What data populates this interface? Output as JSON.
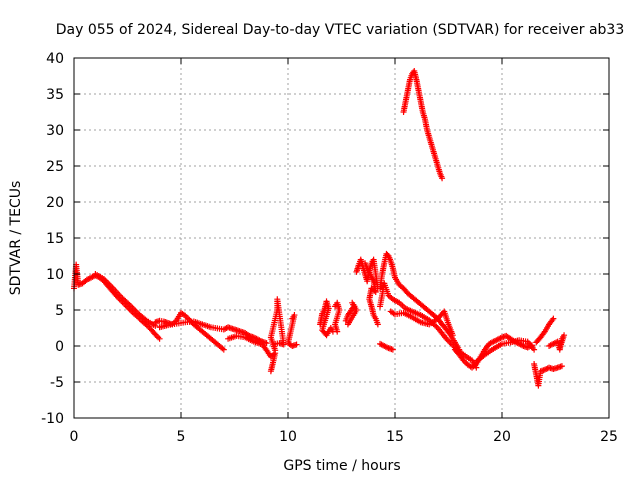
{
  "chart_data": {
    "type": "scatter",
    "title": "Day 055 of 2024, Sidereal Day-to-day VTEC variation (SDTVAR) for receiver ab33",
    "xlabel": "GPS time / hours",
    "ylabel": "SDTVAR / TECUs",
    "xlim": [
      0,
      25
    ],
    "ylim": [
      -10,
      40
    ],
    "xticks": [
      "0",
      "5",
      "10",
      "15",
      "20",
      "25"
    ],
    "yticks": [
      "-10",
      "-5",
      "0",
      "5",
      "10",
      "15",
      "20",
      "25",
      "30",
      "35",
      "40"
    ],
    "grid": true,
    "marker": "+",
    "color": "#ff0000",
    "series": [
      {
        "name": "SDTVAR",
        "segments": [
          [
            [
              0.0,
              8.0
            ],
            [
              0.1,
              11.3
            ],
            [
              0.2,
              8.5
            ],
            [
              0.4,
              8.7
            ],
            [
              0.6,
              9.2
            ],
            [
              0.8,
              9.5
            ],
            [
              1.0,
              9.8
            ],
            [
              1.2,
              9.5
            ],
            [
              1.4,
              9.0
            ],
            [
              1.6,
              8.3
            ],
            [
              1.8,
              7.6
            ],
            [
              2.0,
              6.9
            ],
            [
              2.2,
              6.3
            ],
            [
              2.4,
              5.7
            ],
            [
              2.6,
              5.1
            ],
            [
              2.8,
              4.5
            ],
            [
              3.0,
              4.0
            ],
            [
              3.2,
              3.4
            ],
            [
              3.4,
              2.9
            ],
            [
              3.6,
              2.3
            ],
            [
              3.8,
              1.6
            ],
            [
              4.0,
              1.0
            ]
          ],
          [
            [
              1.0,
              10.0
            ],
            [
              1.4,
              9.3
            ],
            [
              1.8,
              8.1
            ],
            [
              2.2,
              6.8
            ],
            [
              2.6,
              5.7
            ],
            [
              3.0,
              4.5
            ],
            [
              3.4,
              3.5
            ],
            [
              3.8,
              2.8
            ]
          ],
          [
            [
              3.8,
              3.3
            ],
            [
              4.0,
              3.5
            ],
            [
              4.2,
              3.4
            ],
            [
              4.4,
              3.2
            ],
            [
              4.6,
              3.0
            ],
            [
              4.8,
              3.6
            ],
            [
              5.0,
              4.6
            ],
            [
              5.2,
              4.2
            ],
            [
              5.4,
              3.6
            ],
            [
              5.6,
              3.0
            ],
            [
              5.8,
              2.5
            ],
            [
              6.0,
              2.0
            ],
            [
              6.2,
              1.5
            ],
            [
              6.4,
              1.0
            ],
            [
              6.6,
              0.5
            ],
            [
              6.8,
              0.0
            ],
            [
              7.0,
              -0.5
            ]
          ],
          [
            [
              4.0,
              2.6
            ],
            [
              4.4,
              2.9
            ],
            [
              4.8,
              3.1
            ],
            [
              5.2,
              3.3
            ],
            [
              5.6,
              3.4
            ],
            [
              6.0,
              3.0
            ],
            [
              6.4,
              2.6
            ],
            [
              6.8,
              2.4
            ],
            [
              7.0,
              2.3
            ],
            [
              7.2,
              2.6
            ],
            [
              7.4,
              2.4
            ],
            [
              7.6,
              2.2
            ],
            [
              7.8,
              2.0
            ],
            [
              8.0,
              1.8
            ],
            [
              8.2,
              1.4
            ],
            [
              8.4,
              1.2
            ],
            [
              8.6,
              0.9
            ],
            [
              8.8,
              0.6
            ],
            [
              9.0,
              0.4
            ]
          ],
          [
            [
              7.2,
              1.0
            ],
            [
              7.6,
              1.4
            ],
            [
              8.0,
              1.2
            ],
            [
              8.4,
              0.6
            ],
            [
              8.8,
              0.2
            ],
            [
              9.0,
              -0.6
            ],
            [
              9.2,
              -1.5
            ],
            [
              9.4,
              -1.0
            ],
            [
              9.3,
              -2.3
            ],
            [
              9.2,
              -3.5
            ]
          ],
          [
            [
              9.4,
              0.3
            ],
            [
              9.6,
              0.4
            ],
            [
              9.8,
              0.2
            ],
            [
              9.5,
              6.5
            ],
            [
              9.5,
              5.0
            ],
            [
              9.2,
              1.2
            ],
            [
              9.4,
              -0.6
            ]
          ],
          [
            [
              10.2,
              3.8
            ],
            [
              10.3,
              4.3
            ],
            [
              10.0,
              0.4
            ],
            [
              10.2,
              0.0
            ],
            [
              10.4,
              0.2
            ]
          ],
          [
            [
              11.5,
              3.0
            ],
            [
              11.6,
              4.5
            ],
            [
              11.7,
              5.0
            ],
            [
              11.8,
              6.2
            ],
            [
              11.9,
              5.2
            ],
            [
              11.6,
              2.2
            ],
            [
              11.8,
              1.5
            ],
            [
              12.0,
              2.5
            ],
            [
              12.1,
              2.0
            ]
          ],
          [
            [
              12.2,
              5.5
            ],
            [
              12.3,
              6.0
            ],
            [
              12.4,
              5.0
            ],
            [
              12.2,
              3.0
            ],
            [
              12.3,
              2.0
            ]
          ],
          [
            [
              12.7,
              3.5
            ],
            [
              12.8,
              4.3
            ],
            [
              12.9,
              4.7
            ],
            [
              13.0,
              5.2
            ],
            [
              13.1,
              5.5
            ],
            [
              13.0,
              6.0
            ],
            [
              13.2,
              5.0
            ],
            [
              12.8,
              3.0
            ]
          ],
          [
            [
              13.2,
              10.3
            ],
            [
              13.3,
              11.2
            ],
            [
              13.4,
              12.0
            ],
            [
              13.5,
              11.0
            ],
            [
              13.6,
              10.0
            ],
            [
              13.7,
              9.0
            ],
            [
              13.8,
              10.5
            ],
            [
              13.9,
              11.5
            ],
            [
              14.0,
              12.0
            ],
            [
              14.1,
              10.0
            ],
            [
              14.2,
              8.0
            ]
          ],
          [
            [
              13.6,
              11.5
            ],
            [
              13.8,
              10.2
            ],
            [
              14.0,
              9.0
            ],
            [
              14.1,
              7.5
            ],
            [
              13.9,
              8.0
            ],
            [
              13.8,
              6.5
            ],
            [
              13.9,
              5.5
            ],
            [
              14.0,
              4.3
            ],
            [
              14.1,
              3.8
            ],
            [
              14.2,
              3.0
            ]
          ],
          [
            [
              14.3,
              8.0
            ],
            [
              14.4,
              10.0
            ],
            [
              14.5,
              11.5
            ],
            [
              14.6,
              12.8
            ],
            [
              14.7,
              12.5
            ],
            [
              14.8,
              11.8
            ],
            [
              14.9,
              10.8
            ],
            [
              15.0,
              9.5
            ],
            [
              15.2,
              8.5
            ],
            [
              15.4,
              8.0
            ],
            [
              15.6,
              7.3
            ],
            [
              15.8,
              6.8
            ],
            [
              16.0,
              6.3
            ],
            [
              16.2,
              5.8
            ],
            [
              16.4,
              5.3
            ],
            [
              16.6,
              4.8
            ],
            [
              16.8,
              4.3
            ],
            [
              17.0,
              3.8
            ],
            [
              17.2,
              3.0
            ],
            [
              17.4,
              2.3
            ],
            [
              17.6,
              1.5
            ],
            [
              17.8,
              0.5
            ],
            [
              18.0,
              -0.5
            ]
          ],
          [
            [
              14.3,
              5.5
            ],
            [
              14.5,
              8.7
            ],
            [
              14.7,
              7.0
            ],
            [
              14.9,
              6.5
            ],
            [
              15.2,
              6.0
            ],
            [
              15.5,
              5.2
            ],
            [
              15.8,
              4.8
            ],
            [
              16.2,
              4.3
            ],
            [
              16.6,
              3.6
            ],
            [
              17.0,
              2.5
            ],
            [
              17.4,
              1.0
            ],
            [
              17.8,
              -0.2
            ],
            [
              18.2,
              -1.2
            ],
            [
              18.6,
              -2.0
            ],
            [
              18.8,
              -3.0
            ]
          ],
          [
            [
              14.8,
              4.8
            ],
            [
              15.0,
              4.4
            ],
            [
              15.4,
              4.6
            ],
            [
              15.8,
              4.0
            ],
            [
              16.2,
              3.3
            ],
            [
              16.6,
              3.0
            ],
            [
              17.0,
              3.8
            ],
            [
              17.3,
              4.8
            ],
            [
              17.5,
              3.0
            ],
            [
              17.7,
              1.5
            ]
          ],
          [
            [
              14.3,
              0.3
            ],
            [
              14.5,
              0.0
            ],
            [
              14.7,
              -0.3
            ],
            [
              14.9,
              -0.5
            ]
          ],
          [
            [
              15.4,
              32.5
            ],
            [
              15.5,
              34.0
            ],
            [
              15.6,
              35.5
            ],
            [
              15.7,
              37.0
            ],
            [
              15.8,
              37.8
            ],
            [
              15.9,
              38.2
            ],
            [
              16.0,
              37.0
            ],
            [
              16.1,
              35.5
            ],
            [
              16.2,
              34.0
            ],
            [
              16.3,
              32.5
            ],
            [
              16.4,
              31.5
            ],
            [
              16.5,
              30.0
            ],
            [
              16.6,
              29.0
            ],
            [
              16.7,
              28.0
            ],
            [
              16.8,
              27.0
            ],
            [
              16.9,
              26.0
            ],
            [
              17.0,
              25.0
            ],
            [
              17.1,
              24.0
            ],
            [
              17.2,
              23.3
            ]
          ],
          [
            [
              17.8,
              -0.5
            ],
            [
              18.0,
              -1.2
            ],
            [
              18.2,
              -2.0
            ],
            [
              18.4,
              -2.6
            ],
            [
              18.6,
              -3.0
            ],
            [
              18.8,
              -2.5
            ],
            [
              19.0,
              -1.5
            ],
            [
              19.2,
              -0.5
            ],
            [
              19.4,
              0.3
            ],
            [
              19.6,
              0.6
            ],
            [
              19.8,
              0.9
            ],
            [
              20.0,
              1.2
            ],
            [
              20.2,
              1.4
            ],
            [
              20.4,
              1.0
            ],
            [
              20.6,
              0.6
            ],
            [
              20.8,
              0.3
            ],
            [
              21.0,
              0.0
            ],
            [
              21.2,
              -0.2
            ],
            [
              21.4,
              0.1
            ]
          ],
          [
            [
              18.8,
              -2.2
            ],
            [
              19.2,
              -1.2
            ],
            [
              19.6,
              -0.4
            ],
            [
              20.0,
              0.3
            ],
            [
              20.4,
              0.5
            ],
            [
              20.8,
              0.8
            ],
            [
              21.2,
              0.6
            ],
            [
              21.5,
              -0.5
            ]
          ],
          [
            [
              21.5,
              -2.5
            ],
            [
              21.6,
              -4.0
            ],
            [
              21.7,
              -5.5
            ],
            [
              21.8,
              -3.5
            ],
            [
              22.0,
              -3.3
            ],
            [
              22.2,
              -3.0
            ],
            [
              22.4,
              -3.2
            ],
            [
              22.6,
              -3.0
            ],
            [
              22.8,
              -2.8
            ]
          ],
          [
            [
              21.6,
              0.5
            ],
            [
              21.8,
              1.2
            ],
            [
              22.0,
              2.0
            ],
            [
              22.2,
              3.0
            ],
            [
              22.4,
              3.8
            ]
          ],
          [
            [
              22.2,
              0.0
            ],
            [
              22.4,
              0.3
            ],
            [
              22.6,
              0.6
            ],
            [
              22.7,
              -0.5
            ],
            [
              22.8,
              1.0
            ],
            [
              22.9,
              1.5
            ],
            [
              22.7,
              -0.3
            ]
          ]
        ]
      }
    ]
  }
}
